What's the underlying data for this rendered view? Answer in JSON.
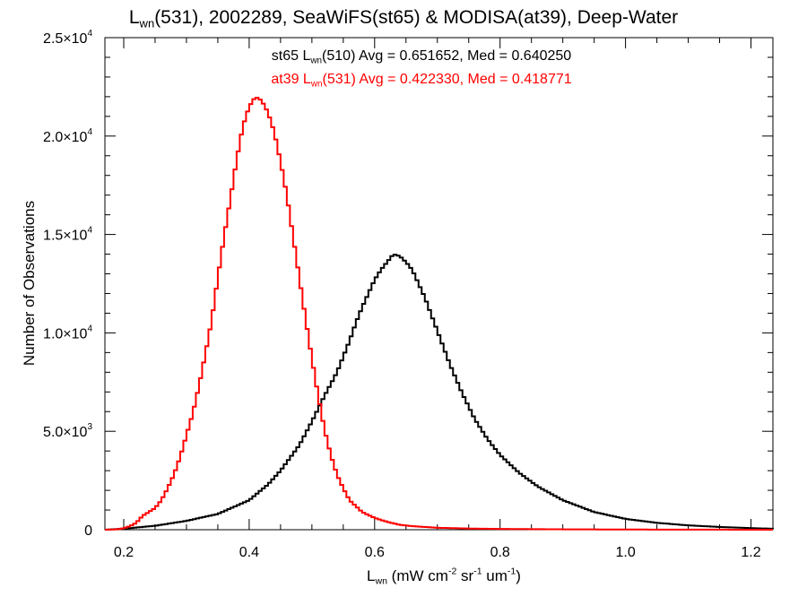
{
  "chart_data": {
    "type": "line",
    "title": {
      "pre": "L",
      "sub": "wn",
      "post": "(531), 2002289, SeaWiFS(st65) & MODISA(at39), Deep-Water"
    },
    "xlabel": {
      "pre": "L",
      "sub": "wn",
      "post": " (mW cm",
      "sup1": "-2",
      "mid1": " sr",
      "sup2": "-1",
      "mid2": " um",
      "sup3": "-1",
      "end": ")"
    },
    "ylabel": "Number of Observations",
    "xlim": [
      0.17,
      1.235
    ],
    "ylim": [
      0,
      25000
    ],
    "x_ticks": [
      {
        "value": 0.2,
        "label": "0.2"
      },
      {
        "value": 0.4,
        "label": "0.4"
      },
      {
        "value": 0.6,
        "label": "0.6"
      },
      {
        "value": 0.8,
        "label": "0.8"
      },
      {
        "value": 1.0,
        "label": "1.0"
      },
      {
        "value": 1.2,
        "label": "1.2"
      }
    ],
    "y_ticks": [
      {
        "value": 0,
        "base": "0",
        "exp": ""
      },
      {
        "value": 5000,
        "base": "5.0×10",
        "exp": "3"
      },
      {
        "value": 10000,
        "base": "1.0×10",
        "exp": "4"
      },
      {
        "value": 15000,
        "base": "1.5×10",
        "exp": "4"
      },
      {
        "value": 20000,
        "base": "2.0×10",
        "exp": "4"
      },
      {
        "value": 25000,
        "base": "2.5×10",
        "exp": "4"
      }
    ],
    "grid": false,
    "series": [
      {
        "label": {
          "pre": "st65 L",
          "sub": "wn",
          "post": "(510) Avg = 0.651652, Med = 0.640250"
        },
        "color": "#000000",
        "x": [
          0.17,
          0.2,
          0.25,
          0.3,
          0.35,
          0.4,
          0.43,
          0.45,
          0.48,
          0.5,
          0.52,
          0.54,
          0.56,
          0.57,
          0.58,
          0.59,
          0.6,
          0.61,
          0.62,
          0.63,
          0.64,
          0.65,
          0.66,
          0.67,
          0.68,
          0.7,
          0.72,
          0.74,
          0.76,
          0.78,
          0.8,
          0.83,
          0.86,
          0.9,
          0.95,
          1.0,
          1.05,
          1.1,
          1.15,
          1.2,
          1.235
        ],
        "values": [
          0,
          50,
          200,
          450,
          800,
          1500,
          2300,
          3000,
          4300,
          5500,
          6800,
          8000,
          9600,
          10500,
          11300,
          12000,
          12700,
          13200,
          13600,
          14000,
          13900,
          13600,
          13200,
          12500,
          11800,
          10100,
          8400,
          6900,
          5600,
          4600,
          3800,
          2900,
          2200,
          1500,
          900,
          550,
          350,
          220,
          140,
          80,
          50
        ]
      },
      {
        "label": {
          "pre": "at39 L",
          "sub": "wn",
          "post": "(531) Avg = 0.422330, Med = 0.418771"
        },
        "color": "#ff0000",
        "x": [
          0.17,
          0.19,
          0.2,
          0.21,
          0.22,
          0.23,
          0.24,
          0.25,
          0.26,
          0.27,
          0.28,
          0.29,
          0.3,
          0.31,
          0.32,
          0.33,
          0.34,
          0.35,
          0.36,
          0.37,
          0.38,
          0.39,
          0.4,
          0.41,
          0.42,
          0.43,
          0.44,
          0.45,
          0.46,
          0.47,
          0.48,
          0.49,
          0.5,
          0.51,
          0.52,
          0.53,
          0.54,
          0.55,
          0.56,
          0.58,
          0.6,
          0.62,
          0.64,
          0.66,
          0.7,
          0.75,
          0.8,
          0.9,
          1.0,
          1.235
        ],
        "values": [
          0,
          20,
          80,
          180,
          350,
          700,
          900,
          1100,
          1500,
          2100,
          2800,
          3700,
          4800,
          5900,
          7300,
          8900,
          10600,
          12800,
          14900,
          16800,
          18800,
          20500,
          21500,
          22000,
          21800,
          21200,
          20200,
          18700,
          17000,
          14900,
          12800,
          10700,
          8700,
          6800,
          5100,
          3800,
          2800,
          2100,
          1500,
          900,
          600,
          400,
          250,
          180,
          100,
          60,
          40,
          20,
          10,
          0
        ]
      }
    ]
  }
}
